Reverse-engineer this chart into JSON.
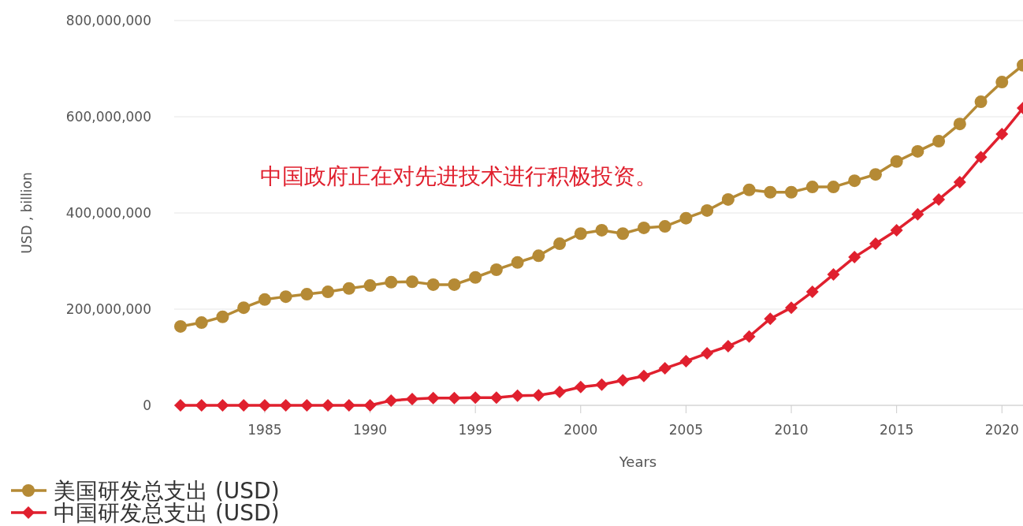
{
  "chart_data": {
    "type": "line",
    "xlabel": "Years",
    "ylabel": "USD , billion",
    "annotations": [
      "中国政府正在对先进技术进行积极投资。"
    ],
    "x": [
      1981,
      1982,
      1983,
      1984,
      1985,
      1986,
      1987,
      1988,
      1989,
      1990,
      1991,
      1992,
      1993,
      1994,
      1995,
      1996,
      1997,
      1998,
      1999,
      2000,
      2001,
      2002,
      2003,
      2004,
      2005,
      2006,
      2007,
      2008,
      2009,
      2010,
      2011,
      2012,
      2013,
      2014,
      2015,
      2016,
      2017,
      2018,
      2019,
      2020,
      2021
    ],
    "series": [
      {
        "name": "美国研发总支出 (USD)",
        "color": "#b58a35",
        "marker": "circle",
        "values": [
          164000000,
          172000000,
          184000000,
          203000000,
          220000000,
          226000000,
          231000000,
          236000000,
          243000000,
          249000000,
          256000000,
          257000000,
          251000000,
          251000000,
          266000000,
          282000000,
          297000000,
          311000000,
          336000000,
          357000000,
          364000000,
          357000000,
          369000000,
          372000000,
          389000000,
          405000000,
          428000000,
          448000000,
          443000000,
          443000000,
          454000000,
          454000000,
          467000000,
          480000000,
          507000000,
          528000000,
          549000000,
          585000000,
          631000000,
          672000000,
          707000000
        ]
      },
      {
        "name": "中国研发总支出 (USD)",
        "color": "#e0202e",
        "marker": "diamond",
        "values": [
          0,
          0,
          0,
          0,
          0,
          0,
          0,
          0,
          0,
          0,
          10000000,
          13000000,
          15000000,
          15000000,
          16000000,
          16000000,
          20000000,
          21000000,
          28000000,
          38000000,
          43000000,
          52000000,
          61000000,
          77000000,
          92000000,
          108000000,
          123000000,
          143000000,
          180000000,
          203000000,
          236000000,
          272000000,
          308000000,
          336000000,
          364000000,
          397000000,
          428000000,
          464000000,
          516000000,
          564000000,
          618000000
        ]
      }
    ],
    "xlim": [
      1980.7,
      2021
    ],
    "xticks": [
      1985,
      1990,
      1995,
      2000,
      2005,
      2010,
      2015,
      2020
    ],
    "ylim": [
      0,
      800000000
    ],
    "yticks": [
      {
        "value": 0,
        "label": "0"
      },
      {
        "value": 200000000,
        "label": "200,000,000"
      },
      {
        "value": 400000000,
        "label": "400,000,000"
      },
      {
        "value": 600000000,
        "label": "600,000,000"
      },
      {
        "value": 800000000,
        "label": "800,000,000"
      }
    ],
    "grid": "y",
    "legend": "bottom left",
    "line_style": "solid"
  }
}
